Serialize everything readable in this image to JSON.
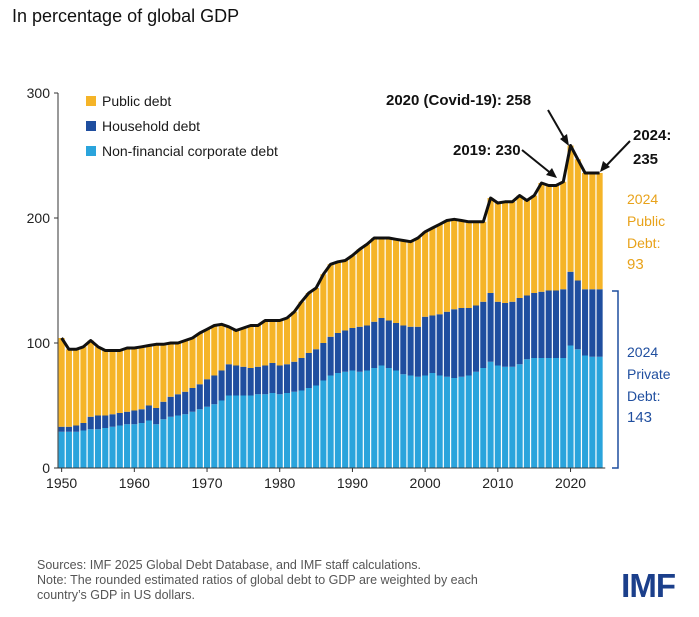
{
  "title": "In percentage of global GDP",
  "legend": [
    {
      "label": "Public debt",
      "color": "#f5b428"
    },
    {
      "label": "Household debt",
      "color": "#1f4e9f"
    },
    {
      "label": "Non-financial corporate debt",
      "color": "#2aa4dc"
    }
  ],
  "annotations": {
    "covid": "2020 (Covid-19): 258",
    "y2019": "2019: 230",
    "y2024_line1": "2024:",
    "y2024_line2": "235"
  },
  "public_label": {
    "year": "2024",
    "l1": "Public",
    "l2": "Debt:",
    "value": "93"
  },
  "private_label": {
    "year": "2024",
    "l1": "Private",
    "l2": "Debt:",
    "value": "143"
  },
  "footer": {
    "line1": "Sources: IMF 2025 Global Debt Database, and IMF staff calculations.",
    "line2": "Note: The rounded estimated ratios of global debt to GDP are weighted by each",
    "line3": "country’s GDP in US dollars."
  },
  "logo": "IMF",
  "colors": {
    "public": "#f5b428",
    "household": "#1f4e9f",
    "corporate": "#2aa4dc",
    "outline": "#111111"
  },
  "chart_data": {
    "type": "bar",
    "stacked": true,
    "title": "In percentage of global GDP",
    "xlabel": "",
    "ylabel": "",
    "ylim": [
      0,
      300
    ],
    "yticks": [
      0,
      100,
      200,
      300
    ],
    "xticks": [
      1950,
      1960,
      1970,
      1980,
      1990,
      2000,
      2010,
      2020
    ],
    "categories": [
      1950,
      1951,
      1952,
      1953,
      1954,
      1955,
      1956,
      1957,
      1958,
      1959,
      1960,
      1961,
      1962,
      1963,
      1964,
      1965,
      1966,
      1967,
      1968,
      1969,
      1970,
      1971,
      1972,
      1973,
      1974,
      1975,
      1976,
      1977,
      1978,
      1979,
      1980,
      1981,
      1982,
      1983,
      1984,
      1985,
      1986,
      1987,
      1988,
      1989,
      1990,
      1991,
      1992,
      1993,
      1994,
      1995,
      1996,
      1997,
      1998,
      1999,
      2000,
      2001,
      2002,
      2003,
      2004,
      2005,
      2006,
      2007,
      2008,
      2009,
      2010,
      2011,
      2012,
      2013,
      2014,
      2015,
      2016,
      2017,
      2018,
      2019,
      2020,
      2021,
      2022,
      2023,
      2024
    ],
    "series": [
      {
        "name": "Non-financial corporate debt",
        "values": [
          29,
          29,
          29,
          30,
          31,
          31,
          32,
          33,
          34,
          35,
          35,
          36,
          38,
          35,
          39,
          41,
          42,
          43,
          45,
          47,
          49,
          51,
          54,
          58,
          58,
          58,
          58,
          59,
          59,
          60,
          59,
          60,
          61,
          62,
          64,
          66,
          70,
          74,
          76,
          77,
          78,
          77,
          78,
          80,
          82,
          80,
          78,
          75,
          74,
          73,
          74,
          76,
          74,
          73,
          72,
          73,
          74,
          77,
          80,
          85,
          82,
          81,
          81,
          83,
          87,
          88,
          88,
          88,
          88,
          88,
          98,
          95,
          90,
          89,
          89
        ]
      },
      {
        "name": "Household debt",
        "values": [
          4,
          4,
          5,
          6,
          10,
          11,
          10,
          10,
          10,
          10,
          11,
          11,
          12,
          13,
          14,
          16,
          17,
          18,
          19,
          20,
          22,
          23,
          24,
          25,
          24,
          23,
          22,
          22,
          23,
          24,
          23,
          23,
          24,
          26,
          28,
          29,
          30,
          31,
          32,
          33,
          34,
          36,
          36,
          37,
          38,
          38,
          38,
          39,
          39,
          40,
          47,
          46,
          49,
          52,
          55,
          55,
          54,
          53,
          53,
          55,
          51,
          51,
          52,
          53,
          51,
          52,
          53,
          54,
          54,
          55,
          59,
          55,
          53,
          54,
          54
        ]
      },
      {
        "name": "Public debt",
        "values": [
          71,
          62,
          61,
          61,
          61,
          55,
          52,
          51,
          50,
          51,
          50,
          50,
          48,
          51,
          46,
          43,
          41,
          41,
          40,
          41,
          40,
          40,
          37,
          30,
          28,
          31,
          34,
          33,
          36,
          34,
          36,
          37,
          40,
          45,
          48,
          49,
          55,
          58,
          57,
          56,
          58,
          62,
          65,
          67,
          64,
          66,
          67,
          68,
          68,
          71,
          68,
          70,
          72,
          73,
          72,
          70,
          69,
          67,
          64,
          76,
          79,
          81,
          80,
          82,
          76,
          78,
          87,
          84,
          84,
          86,
          101,
          97,
          93,
          93,
          93
        ]
      }
    ]
  }
}
